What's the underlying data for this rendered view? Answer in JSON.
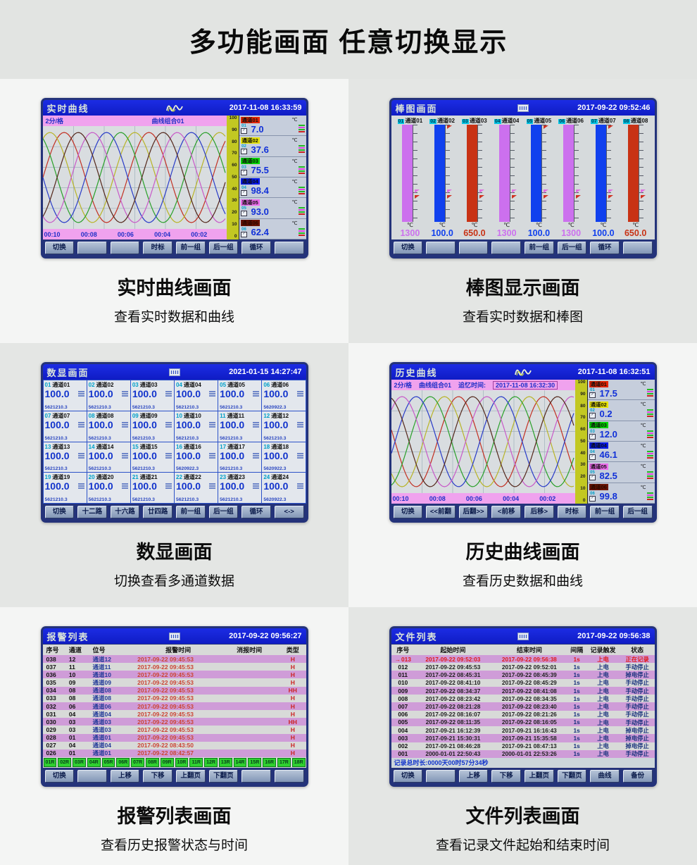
{
  "page": {
    "title": "多功能画面  任意切换显示"
  },
  "screens": {
    "realtime": {
      "title": "实时曲线",
      "datetime": "2017-11-08 16:33:59",
      "scale_label": "2分/格",
      "group_label": "曲线组合01",
      "unit": "℃",
      "y_ticks": [
        "100",
        "90",
        "80",
        "70",
        "60",
        "50",
        "40",
        "30",
        "20",
        "10",
        "0"
      ],
      "x_ticks": [
        "00:10",
        "00:08",
        "00:06",
        "00:04",
        "00:02"
      ],
      "channels": [
        {
          "no": "01",
          "name": "通道01",
          "value": "7.0",
          "color": "#e42400"
        },
        {
          "no": "02",
          "name": "通道02",
          "value": "37.6",
          "color": "#e8e400"
        },
        {
          "no": "03",
          "name": "通道03",
          "value": "75.5",
          "color": "#00d400"
        },
        {
          "no": "04",
          "name": "通道04",
          "value": "98.4",
          "color": "#0018e8"
        },
        {
          "no": "05",
          "name": "通道05",
          "value": "93.0",
          "color": "#ee6cee"
        },
        {
          "no": "06",
          "name": "通道06",
          "value": "62.4",
          "color": "#6a1404",
          "fg": "#2a0800"
        }
      ],
      "curve_colors": [
        "#c23124",
        "#b8b428",
        "#2aa02a",
        "#2a3cc8",
        "#c85ac8",
        "#54281c"
      ],
      "buttons": [
        "切换",
        "",
        "",
        "时标",
        "前一组",
        "后一组",
        "循环",
        ""
      ],
      "caption": {
        "title": "实时曲线画面",
        "subtitle": "查看实时数据和曲线"
      }
    },
    "bargraph": {
      "title": "棒图画面",
      "datetime": "2017-09-22 09:52:46",
      "unit": "℃",
      "bars": [
        {
          "no": "01",
          "name": "通道01",
          "value": "1300",
          "color": "#cc70ee"
        },
        {
          "no": "02",
          "name": "通道02",
          "value": "100.0",
          "color": "#1040ee"
        },
        {
          "no": "03",
          "name": "通道03",
          "value": "650.0",
          "color": "#c83214"
        },
        {
          "no": "04",
          "name": "通道04",
          "value": "1300",
          "color": "#cc70ee"
        },
        {
          "no": "05",
          "name": "通道05",
          "value": "100.0",
          "color": "#1040ee"
        },
        {
          "no": "06",
          "name": "通道06",
          "value": "1300",
          "color": "#cc70ee"
        },
        {
          "no": "07",
          "name": "通道07",
          "value": "100.0",
          "color": "#1040ee"
        },
        {
          "no": "08",
          "name": "通道08",
          "value": "650.0",
          "color": "#c83214"
        }
      ],
      "buttons": [
        "切换",
        "",
        "",
        "",
        "前一组",
        "后一组",
        "循环",
        ""
      ],
      "caption": {
        "title": "棒图显示画面",
        "subtitle": "查看实时数据和棒图"
      }
    },
    "digital": {
      "title": "数显画面",
      "datetime": "2021-01-15 14:27:47",
      "cells": [
        {
          "no": "01",
          "name": "通道01",
          "value": "100.0",
          "total": "5621210.3"
        },
        {
          "no": "02",
          "name": "通道02",
          "value": "100.0",
          "total": "5621210.3"
        },
        {
          "no": "03",
          "name": "通道03",
          "value": "100.0",
          "total": "5621210.3"
        },
        {
          "no": "04",
          "name": "通道04",
          "value": "100.0",
          "total": "5621210.3"
        },
        {
          "no": "05",
          "name": "通道05",
          "value": "100.0",
          "total": "5621210.3"
        },
        {
          "no": "06",
          "name": "通道06",
          "value": "100.0",
          "total": "5620922.3"
        },
        {
          "no": "07",
          "name": "通道07",
          "value": "100.0",
          "total": "5621210.3"
        },
        {
          "no": "08",
          "name": "通道08",
          "value": "100.0",
          "total": "5621210.3"
        },
        {
          "no": "09",
          "name": "通道09",
          "value": "100.0",
          "total": "5621210.3"
        },
        {
          "no": "10",
          "name": "通道10",
          "value": "100.0",
          "total": "5621210.3"
        },
        {
          "no": "11",
          "name": "通道11",
          "value": "100.0",
          "total": "5621210.3"
        },
        {
          "no": "12",
          "name": "通道12",
          "value": "100.0",
          "total": "5621210.3"
        },
        {
          "no": "13",
          "name": "通道13",
          "value": "100.0",
          "total": "5621210.3"
        },
        {
          "no": "14",
          "name": "通道14",
          "value": "100.0",
          "total": "5621210.3"
        },
        {
          "no": "15",
          "name": "通道15",
          "value": "100.0",
          "total": "5621210.3"
        },
        {
          "no": "16",
          "name": "通道16",
          "value": "100.0",
          "total": "5620922.3"
        },
        {
          "no": "17",
          "name": "通道17",
          "value": "100.0",
          "total": "5621210.3"
        },
        {
          "no": "18",
          "name": "通道18",
          "value": "100.0",
          "total": "5620922.3"
        },
        {
          "no": "19",
          "name": "通道19",
          "value": "100.0",
          "total": "5621210.3"
        },
        {
          "no": "20",
          "name": "通道20",
          "value": "100.0",
          "total": "5621210.3"
        },
        {
          "no": "21",
          "name": "通道21",
          "value": "100.0",
          "total": "5621210.3"
        },
        {
          "no": "22",
          "name": "通道22",
          "value": "100.0",
          "total": "5621210.3"
        },
        {
          "no": "23",
          "name": "通道23",
          "value": "100.0",
          "total": "5621210.3"
        },
        {
          "no": "24",
          "name": "通道24",
          "value": "100.0",
          "total": "5620922.3"
        }
      ],
      "buttons": [
        "切换",
        "十二路",
        "十六路",
        "廿四路",
        "前一组",
        "后一组",
        "循环",
        "<->"
      ],
      "caption": {
        "title": "数显画面",
        "subtitle": "切换查看多通道数据"
      }
    },
    "history": {
      "title": "历史曲线",
      "datetime": "2017-11-08 16:32:51",
      "scale_label": "2分/格",
      "group_label": "曲线组合01",
      "recall_label": "追忆时间:",
      "recall_time": "2017-11-08 16:32:30",
      "unit": "℃",
      "y_ticks": [
        "100",
        "90",
        "80",
        "70",
        "60",
        "50",
        "40",
        "30",
        "20",
        "10",
        "0"
      ],
      "x_ticks": [
        "00:10",
        "00:08",
        "00:06",
        "00:04",
        "00:02"
      ],
      "channels": [
        {
          "no": "01",
          "name": "通道01",
          "value": "17.5",
          "color": "#e42400"
        },
        {
          "no": "02",
          "name": "通道02",
          "value": "0.2",
          "color": "#e8e400"
        },
        {
          "no": "03",
          "name": "通道03",
          "value": "12.0",
          "color": "#00d400"
        },
        {
          "no": "04",
          "name": "通道04",
          "value": "46.1",
          "color": "#0018e8"
        },
        {
          "no": "05",
          "name": "通道05",
          "value": "82.5",
          "color": "#ee6cee"
        },
        {
          "no": "06",
          "name": "通道06",
          "value": "99.8",
          "color": "#6a1404",
          "fg": "#2a0800"
        }
      ],
      "curve_colors": [
        "#c23124",
        "#b8b428",
        "#2aa02a",
        "#2a3cc8",
        "#c85ac8",
        "#54281c"
      ],
      "buttons": [
        "切换",
        "<<前翻",
        "后翻>>",
        "<前移",
        "后移>",
        "时标",
        "前一组",
        "后一组"
      ],
      "caption": {
        "title": "历史曲线画面",
        "subtitle": "查看历史数据和曲线"
      }
    },
    "alarm": {
      "title": "报警列表",
      "datetime": "2017-09-22 09:56:27",
      "columns": [
        "序号",
        "通道",
        "位号",
        "报警时间",
        "消报时间",
        "类型"
      ],
      "rows": [
        [
          "038",
          "12",
          "通道12",
          "2017-09-22 09:45:53",
          "",
          "H"
        ],
        [
          "037",
          "11",
          "通道11",
          "2017-09-22 09:45:53",
          "",
          "H"
        ],
        [
          "036",
          "10",
          "通道10",
          "2017-09-22 09:45:53",
          "",
          "H"
        ],
        [
          "035",
          "09",
          "通道09",
          "2017-09-22 09:45:53",
          "",
          "H"
        ],
        [
          "034",
          "08",
          "通道08",
          "2017-09-22 09:45:53",
          "",
          "HH"
        ],
        [
          "033",
          "08",
          "通道08",
          "2017-09-22 09:45:53",
          "",
          "H"
        ],
        [
          "032",
          "06",
          "通道06",
          "2017-09-22 09:45:53",
          "",
          "H"
        ],
        [
          "031",
          "04",
          "通道04",
          "2017-09-22 09:45:53",
          "",
          "H"
        ],
        [
          "030",
          "03",
          "通道03",
          "2017-09-22 09:45:53",
          "",
          "HH"
        ],
        [
          "029",
          "03",
          "通道03",
          "2017-09-22 09:45:53",
          "",
          "H"
        ],
        [
          "028",
          "01",
          "通道01",
          "2017-09-22 09:45:53",
          "",
          "H"
        ],
        [
          "027",
          "04",
          "通道04",
          "2017-09-22 08:43:50",
          "",
          "H"
        ],
        [
          "026",
          "01",
          "通道01",
          "2017-09-22 08:42:57",
          "",
          "H"
        ]
      ],
      "relay_tabs": [
        "01R",
        "02R",
        "03R",
        "04R",
        "05R",
        "06R",
        "07R",
        "08R",
        "09R",
        "10R",
        "11R",
        "12R",
        "13R",
        "14R",
        "15R",
        "16R",
        "17R",
        "18R"
      ],
      "buttons": [
        "切换",
        "",
        "上移",
        "下移",
        "上翻页",
        "下翻页",
        "",
        ""
      ],
      "caption": {
        "title": "报警列表画面",
        "subtitle": "查看历史报警状态与时间"
      }
    },
    "files": {
      "title": "文件列表",
      "datetime": "2017-09-22 09:56:38",
      "columns": [
        "序号",
        "起始时间",
        "结束时间",
        "间隔",
        "记录触发",
        "状态"
      ],
      "rows": [
        {
          "no": "013",
          "start": "2017-09-22 09:52:03",
          "end": "2017-09-22 09:56:38",
          "interval": "1s",
          "trigger": "上电",
          "status": "正在记录",
          "active": true
        },
        {
          "no": "012",
          "start": "2017-09-22 09:45:53",
          "end": "2017-09-22 09:52:01",
          "interval": "1s",
          "trigger": "上电",
          "status": "手动停止"
        },
        {
          "no": "011",
          "start": "2017-09-22 08:45:31",
          "end": "2017-09-22 08:45:39",
          "interval": "1s",
          "trigger": "上电",
          "status": "掉电停止"
        },
        {
          "no": "010",
          "start": "2017-09-22 08:41:10",
          "end": "2017-09-22 08:45:29",
          "interval": "1s",
          "trigger": "上电",
          "status": "手动停止"
        },
        {
          "no": "009",
          "start": "2017-09-22 08:34:37",
          "end": "2017-09-22 08:41:08",
          "interval": "1s",
          "trigger": "上电",
          "status": "手动停止"
        },
        {
          "no": "008",
          "start": "2017-09-22 08:23:42",
          "end": "2017-09-22 08:34:35",
          "interval": "1s",
          "trigger": "上电",
          "status": "手动停止"
        },
        {
          "no": "007",
          "start": "2017-09-22 08:21:28",
          "end": "2017-09-22 08:23:40",
          "interval": "1s",
          "trigger": "上电",
          "status": "手动停止"
        },
        {
          "no": "006",
          "start": "2017-09-22 08:16:07",
          "end": "2017-09-22 08:21:26",
          "interval": "1s",
          "trigger": "上电",
          "status": "手动停止"
        },
        {
          "no": "005",
          "start": "2017-09-22 08:11:35",
          "end": "2017-09-22 08:16:05",
          "interval": "1s",
          "trigger": "上电",
          "status": "手动停止"
        },
        {
          "no": "004",
          "start": "2017-09-21 16:12:39",
          "end": "2017-09-21 16:16:43",
          "interval": "1s",
          "trigger": "上电",
          "status": "掉电停止"
        },
        {
          "no": "003",
          "start": "2017-09-21 15:30:31",
          "end": "2017-09-21 15:35:58",
          "interval": "1s",
          "trigger": "上电",
          "status": "掉电停止"
        },
        {
          "no": "002",
          "start": "2017-09-21 08:46:28",
          "end": "2017-09-21 08:47:13",
          "interval": "1s",
          "trigger": "上电",
          "status": "掉电停止"
        },
        {
          "no": "001",
          "start": "2000-01-01 22:50:43",
          "end": "2000-01-01 22:53:26",
          "interval": "1s",
          "trigger": "上电",
          "status": "手动停止"
        }
      ],
      "footer": "记录总时长:0000天00时57分34秒",
      "buttons": [
        "切换",
        "",
        "上移",
        "下移",
        "上翻页",
        "下翻页",
        "曲线",
        "备份"
      ],
      "caption": {
        "title": "文件列表画面",
        "subtitle": "查看记录文件起始和结束时间"
      }
    }
  }
}
